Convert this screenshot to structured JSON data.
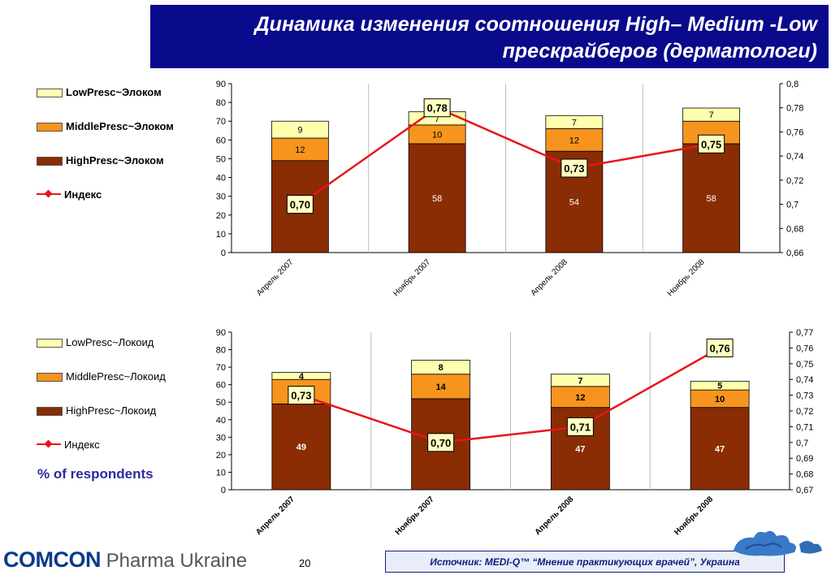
{
  "title": {
    "line1": "Динамика изменения соотношения  High– Medium -Low",
    "line2": "прескрайберов (дерматологи)"
  },
  "colors": {
    "high": "#8a2c04",
    "middle": "#f7941d",
    "low": "#ffffb0",
    "index": "#e8141c",
    "title_bg": "#0a0a8c"
  },
  "chart1": {
    "legend": [
      {
        "label": "LowPresc~Элоком",
        "type": "low"
      },
      {
        "label": "MiddlePresc~Элоком",
        "type": "middle"
      },
      {
        "label": "HighPresc~Элоком",
        "type": "high"
      },
      {
        "label": "Индекс",
        "type": "index"
      }
    ]
  },
  "chart2": {
    "legend": [
      {
        "label": "LowPresc~Локоид",
        "type": "low"
      },
      {
        "label": "MiddlePresc~Локоид",
        "type": "middle"
      },
      {
        "label": "HighPresc~Локоид",
        "type": "high"
      },
      {
        "label": "Индекс",
        "type": "index"
      }
    ]
  },
  "chart_data": [
    {
      "type": "bar",
      "stacked": true,
      "categories": [
        "Апрель 2007",
        "Ноябрь 2007",
        "Апрель 2008",
        "Ноябрь 2008"
      ],
      "series": [
        {
          "name": "HighPresc~Элоком",
          "values": [
            49,
            58,
            54,
            58
          ],
          "labels": [
            "",
            "58",
            "54",
            "58"
          ]
        },
        {
          "name": "MiddlePresc~Элоком",
          "values": [
            12,
            10,
            12,
            12
          ],
          "labels": [
            "12",
            "10",
            "12",
            ""
          ]
        },
        {
          "name": "LowPresc~Элоком",
          "values": [
            9,
            7,
            7,
            7
          ],
          "labels": [
            "9",
            "7",
            "7",
            "7"
          ]
        }
      ],
      "line_series": {
        "name": "Индекс",
        "values": [
          0.7,
          0.78,
          0.73,
          0.75
        ],
        "labels": [
          "0,70",
          "0,78",
          "0,73",
          "0,75"
        ]
      },
      "ylim": [
        0,
        90
      ],
      "y_ticks": [
        "0",
        "10",
        "20",
        "30",
        "40",
        "50",
        "60",
        "70",
        "80",
        "90"
      ],
      "y2lim": [
        0.66,
        0.8
      ],
      "y2_ticks": [
        "0,66",
        "0,68",
        "0,7",
        "0,72",
        "0,74",
        "0,76",
        "0,78",
        "0,8"
      ],
      "legend_position": "left"
    },
    {
      "type": "bar",
      "stacked": true,
      "categories": [
        "Апрель 2007",
        "Ноябрь 2007",
        "Апрель 2008",
        "Ноябрь 2008"
      ],
      "series": [
        {
          "name": "HighPresc~Локоид",
          "values": [
            49,
            52,
            47,
            47
          ],
          "labels": [
            "49",
            "",
            "47",
            "47"
          ]
        },
        {
          "name": "MiddlePresc~Локоид",
          "values": [
            14,
            14,
            12,
            10
          ],
          "labels": [
            "",
            "14",
            "12",
            "10"
          ]
        },
        {
          "name": "LowPresc~Локоид",
          "values": [
            4,
            8,
            7,
            5
          ],
          "labels": [
            "4",
            "8",
            "7",
            "5"
          ]
        }
      ],
      "line_series": {
        "name": "Индекс",
        "values": [
          0.73,
          0.7,
          0.71,
          0.76
        ],
        "labels": [
          "0,73",
          "0,70",
          "0,71",
          "0,76"
        ]
      },
      "ylim": [
        0,
        90
      ],
      "y_ticks": [
        "0",
        "10",
        "20",
        "30",
        "40",
        "50",
        "60",
        "70",
        "80",
        "90"
      ],
      "y2lim": [
        0.67,
        0.77
      ],
      "y2_ticks": [
        "0,67",
        "0,68",
        "0,69",
        "0,7",
        "0,71",
        "0,72",
        "0,73",
        "0,74",
        "0,75",
        "0,76",
        "0,77"
      ],
      "legend_position": "left"
    }
  ],
  "respondents_label": "% of respondents",
  "footer": {
    "brand": "COMCON",
    "brand_sub": " Pharma Ukraine",
    "page_number": "20",
    "source": "Источник: MEDI-Q™ “Мнение практикующих врачей”, Украина"
  }
}
